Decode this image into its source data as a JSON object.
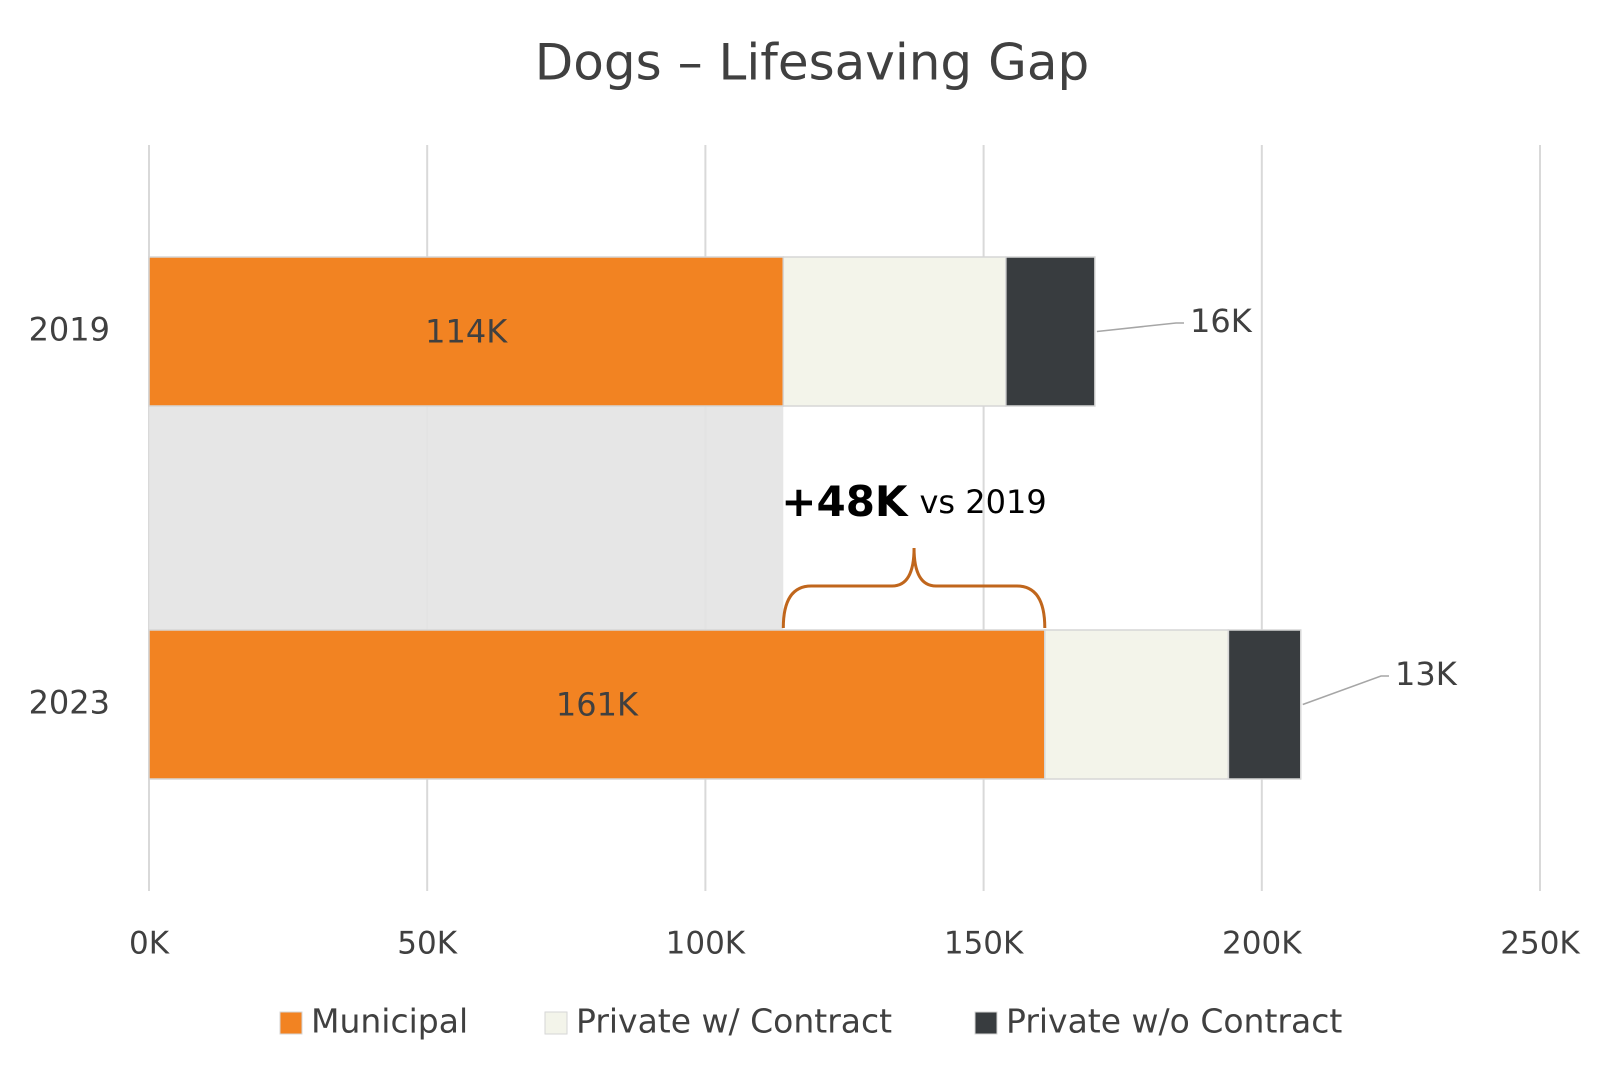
{
  "chart_data": {
    "type": "stacked-hbar",
    "title": "Dogs – Lifesaving Gap",
    "categories": [
      "2019",
      "2023"
    ],
    "series": [
      {
        "name": "Municipal",
        "color": "#f28322",
        "values": [
          114000,
          161000
        ],
        "value_labels": [
          "114K",
          "161K"
        ]
      },
      {
        "name": "Private w/ Contract",
        "color": "#f3f4ea",
        "values": [
          40000,
          33000
        ]
      },
      {
        "name": "Private w/o Contract",
        "color": "#383c3f",
        "values": [
          16000,
          13000
        ],
        "value_labels": [
          "16K",
          "13K"
        ]
      }
    ],
    "xlim": [
      0,
      250000
    ],
    "xticks": [
      {
        "value": 0,
        "label": "0K"
      },
      {
        "value": 50000,
        "label": "50K"
      },
      {
        "value": 100000,
        "label": "100K"
      },
      {
        "value": 150000,
        "label": "150K"
      },
      {
        "value": 200000,
        "label": "200K"
      },
      {
        "value": 250000,
        "label": "250K"
      }
    ],
    "grid": true,
    "legend": "bottom",
    "annotation": {
      "highlight": "+48K",
      "text": "vs 2019"
    }
  }
}
